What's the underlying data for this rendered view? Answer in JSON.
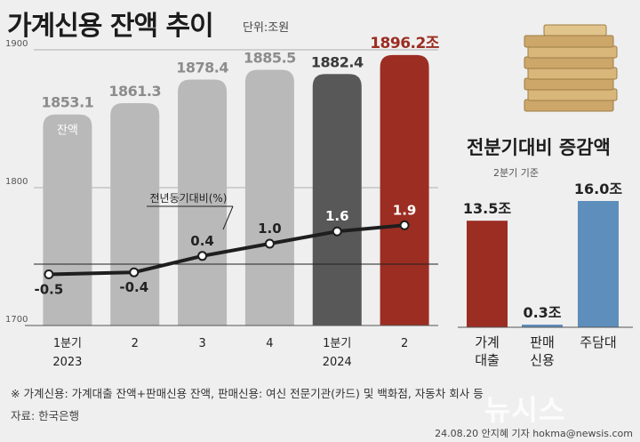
{
  "title": "가계신용 잔액 추이",
  "unit": "단위:조원",
  "footnote": "※ 가계신용: 가계대출 잔액+판매신용 잔액, 판매신용: 여신 전문기관(카드) 및 백화점, 자동차 회사 등",
  "source": "자료: 한국은행",
  "credit": "24.08.20 안지혜 기자 hokma@newsis.com",
  "watermark": "뉴시스",
  "colors": {
    "bar_gray": "#b9b9b9",
    "bar_dark": "#585858",
    "bar_red": "#9c2d22",
    "bar_blue": "#5e8ebb",
    "label_gray": "#8c8c8c",
    "line": "#1e1e1e"
  },
  "chart_data": [
    {
      "type": "bar",
      "categories": [
        "1분기",
        "2",
        "3",
        "4",
        "1분기",
        "2"
      ],
      "year_labels": [
        "2023",
        "",
        "",
        "",
        "2024",
        ""
      ],
      "series": [
        {
          "name": "잔액",
          "values": [
            1853.1,
            1861.3,
            1878.4,
            1885.5,
            1882.4,
            1896.2
          ]
        }
      ],
      "value_labels": [
        "1853.1",
        "1861.3",
        "1878.4",
        "1885.5",
        "1882.4",
        "1896.2조"
      ],
      "y_ticks": [
        1700,
        1800,
        1900
      ],
      "ylim": [
        1700,
        1900
      ],
      "secondary": {
        "type": "line",
        "name": "전년동기대비(%)",
        "values": [
          -0.5,
          -0.4,
          0.4,
          1.0,
          1.6,
          1.9
        ],
        "labels": [
          "-0.5",
          "-0.4",
          "0.4",
          "1.0",
          "1.6",
          "1.9"
        ],
        "baseline": 0
      }
    },
    {
      "type": "bar",
      "title": "전분기대비 증감액",
      "subtitle": "2분기 기준",
      "categories": [
        "가계\n대출",
        "판매\n신용",
        "주담대"
      ],
      "values": [
        13.5,
        0.3,
        16.0
      ],
      "value_labels": [
        "13.5조",
        "0.3조",
        "16.0조"
      ]
    }
  ]
}
